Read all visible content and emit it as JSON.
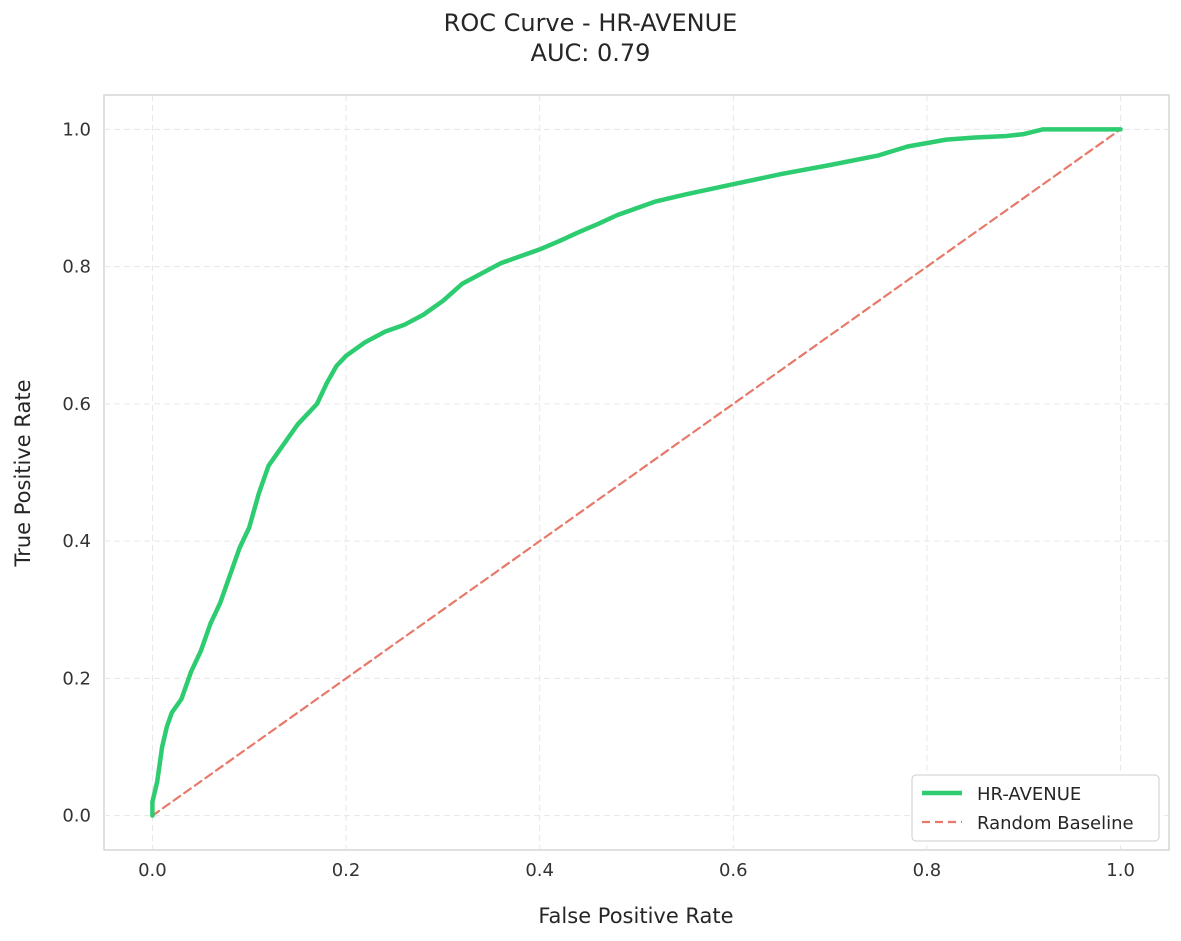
{
  "chart_data": {
    "type": "line",
    "title": "ROC Curve - HR-AVENUE",
    "subtitle": "AUC: 0.79",
    "xlabel": "False Positive Rate",
    "ylabel": "True Positive Rate",
    "xlim": [
      -0.05,
      1.05
    ],
    "ylim": [
      -0.05,
      1.05
    ],
    "xticks": [
      0.0,
      0.2,
      0.4,
      0.6,
      0.8,
      1.0
    ],
    "yticks": [
      0.0,
      0.2,
      0.4,
      0.6,
      0.8,
      1.0
    ],
    "xtick_labels": [
      "0.0",
      "0.2",
      "0.4",
      "0.6",
      "0.8",
      "1.0"
    ],
    "ytick_labels": [
      "0.0",
      "0.2",
      "0.4",
      "0.6",
      "0.8",
      "1.0"
    ],
    "grid": true,
    "legend_position": "lower-right",
    "series": [
      {
        "name": "HR-AVENUE",
        "color": "#2ecc71",
        "style": "solid",
        "x": [
          0.0,
          0.0,
          0.005,
          0.01,
          0.015,
          0.02,
          0.03,
          0.04,
          0.05,
          0.06,
          0.07,
          0.08,
          0.09,
          0.1,
          0.11,
          0.12,
          0.13,
          0.14,
          0.15,
          0.16,
          0.17,
          0.18,
          0.19,
          0.2,
          0.22,
          0.24,
          0.26,
          0.28,
          0.3,
          0.32,
          0.34,
          0.36,
          0.38,
          0.4,
          0.42,
          0.44,
          0.46,
          0.48,
          0.5,
          0.52,
          0.55,
          0.6,
          0.65,
          0.7,
          0.75,
          0.78,
          0.82,
          0.85,
          0.88,
          0.9,
          0.92,
          0.95,
          1.0
        ],
        "y": [
          0.0,
          0.02,
          0.05,
          0.1,
          0.13,
          0.15,
          0.17,
          0.21,
          0.24,
          0.28,
          0.31,
          0.35,
          0.39,
          0.42,
          0.47,
          0.51,
          0.53,
          0.55,
          0.57,
          0.585,
          0.6,
          0.63,
          0.655,
          0.67,
          0.69,
          0.705,
          0.715,
          0.73,
          0.75,
          0.775,
          0.79,
          0.805,
          0.815,
          0.825,
          0.837,
          0.85,
          0.862,
          0.875,
          0.885,
          0.895,
          0.905,
          0.92,
          0.935,
          0.948,
          0.962,
          0.975,
          0.985,
          0.988,
          0.99,
          0.993,
          1.0,
          1.0,
          1.0
        ]
      },
      {
        "name": "Random Baseline",
        "color": "#e8796a",
        "style": "dashed",
        "x": [
          0.0,
          1.0
        ],
        "y": [
          0.0,
          1.0
        ]
      }
    ]
  }
}
